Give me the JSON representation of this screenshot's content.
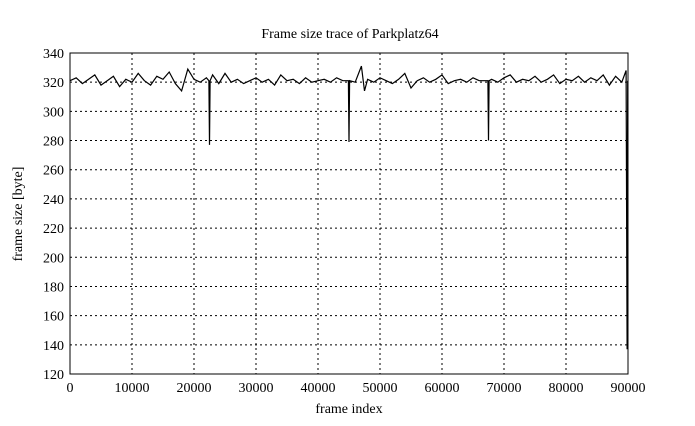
{
  "chart_data": {
    "type": "line",
    "title": "Frame size trace of Parkplatz64",
    "xlabel": "frame index",
    "ylabel": "frame size [byte]",
    "xlim": [
      0,
      90000
    ],
    "ylim": [
      120,
      340
    ],
    "xticks": [
      0,
      10000,
      20000,
      30000,
      40000,
      50000,
      60000,
      70000,
      80000,
      90000
    ],
    "yticks": [
      120,
      140,
      160,
      180,
      200,
      220,
      240,
      260,
      280,
      300,
      320,
      340
    ],
    "grid": true,
    "line_color": "#000000",
    "series": [
      {
        "points": [
          [
            0,
            321
          ],
          [
            1000,
            323
          ],
          [
            2000,
            319
          ],
          [
            3000,
            322
          ],
          [
            4000,
            325
          ],
          [
            5000,
            318
          ],
          [
            6000,
            321
          ],
          [
            7000,
            324
          ],
          [
            8000,
            317
          ],
          [
            9000,
            322
          ],
          [
            10000,
            320
          ],
          [
            11000,
            326
          ],
          [
            12000,
            321
          ],
          [
            13000,
            318
          ],
          [
            14000,
            324
          ],
          [
            15000,
            322
          ],
          [
            16000,
            327
          ],
          [
            17000,
            319
          ],
          [
            18000,
            314
          ],
          [
            19000,
            329
          ],
          [
            20000,
            322
          ],
          [
            21000,
            320
          ],
          [
            22000,
            323
          ],
          [
            22400,
            321
          ],
          [
            22500,
            277
          ],
          [
            22600,
            321
          ],
          [
            23000,
            325
          ],
          [
            24000,
            319
          ],
          [
            25000,
            326
          ],
          [
            26000,
            320
          ],
          [
            27000,
            322
          ],
          [
            28000,
            319
          ],
          [
            29000,
            321
          ],
          [
            30000,
            323
          ],
          [
            31000,
            320
          ],
          [
            32000,
            322
          ],
          [
            33000,
            318
          ],
          [
            34000,
            325
          ],
          [
            35000,
            321
          ],
          [
            36000,
            322
          ],
          [
            37000,
            319
          ],
          [
            38000,
            323
          ],
          [
            39000,
            320
          ],
          [
            40000,
            321
          ],
          [
            41000,
            322
          ],
          [
            42000,
            320
          ],
          [
            43000,
            323
          ],
          [
            44000,
            321
          ],
          [
            44900,
            321
          ],
          [
            45000,
            279
          ],
          [
            45100,
            321
          ],
          [
            46000,
            320
          ],
          [
            47000,
            331
          ],
          [
            47500,
            314
          ],
          [
            48000,
            322
          ],
          [
            49000,
            320
          ],
          [
            50000,
            323
          ],
          [
            51000,
            321
          ],
          [
            52000,
            319
          ],
          [
            53000,
            322
          ],
          [
            54000,
            326
          ],
          [
            55000,
            316
          ],
          [
            56000,
            321
          ],
          [
            57000,
            323
          ],
          [
            58000,
            320
          ],
          [
            59000,
            322
          ],
          [
            60000,
            325
          ],
          [
            61000,
            319
          ],
          [
            62000,
            321
          ],
          [
            63000,
            322
          ],
          [
            64000,
            320
          ],
          [
            65000,
            323
          ],
          [
            66000,
            321
          ],
          [
            67400,
            321
          ],
          [
            67500,
            280
          ],
          [
            67600,
            321
          ],
          [
            68000,
            322
          ],
          [
            69000,
            320
          ],
          [
            70000,
            323
          ],
          [
            71000,
            325
          ],
          [
            72000,
            320
          ],
          [
            73000,
            322
          ],
          [
            74000,
            321
          ],
          [
            75000,
            324
          ],
          [
            76000,
            320
          ],
          [
            77000,
            322
          ],
          [
            78000,
            325
          ],
          [
            79000,
            319
          ],
          [
            80000,
            322
          ],
          [
            81000,
            321
          ],
          [
            82000,
            324
          ],
          [
            83000,
            320
          ],
          [
            84000,
            323
          ],
          [
            85000,
            321
          ],
          [
            86000,
            325
          ],
          [
            87000,
            318
          ],
          [
            88000,
            324
          ],
          [
            89000,
            320
          ],
          [
            89700,
            328
          ],
          [
            89850,
            137
          ],
          [
            89950,
            321
          ],
          [
            90000,
            320
          ]
        ]
      }
    ]
  }
}
